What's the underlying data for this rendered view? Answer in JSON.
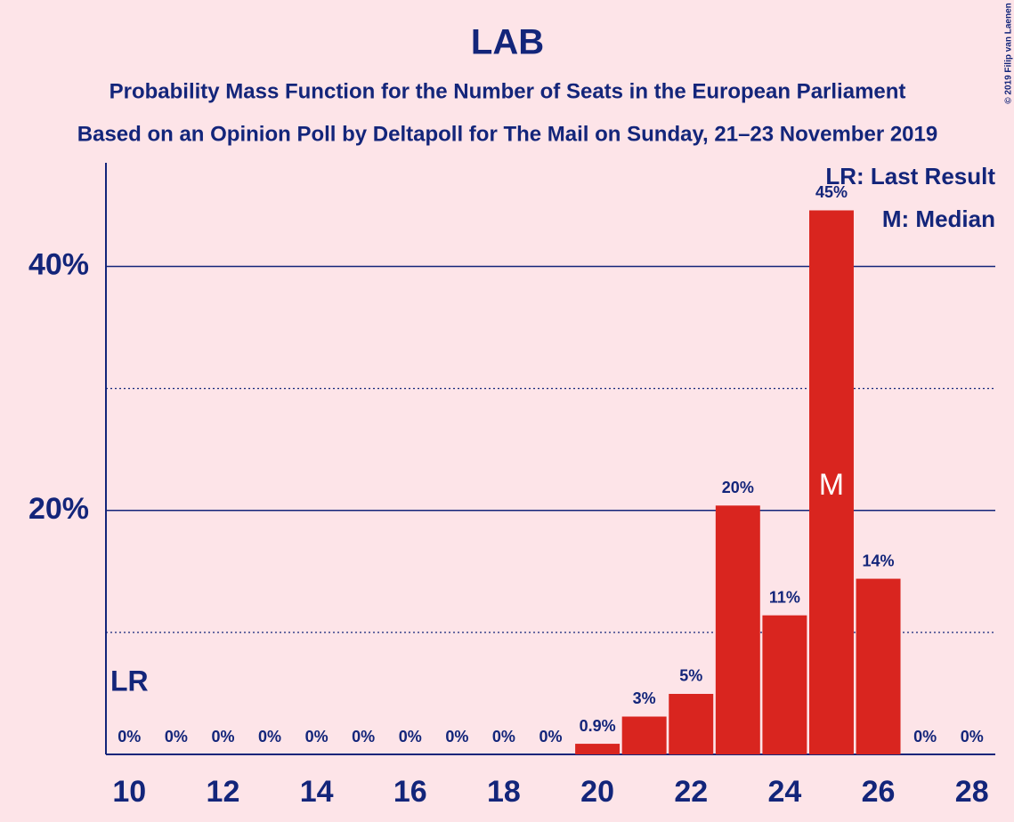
{
  "chart_data": {
    "type": "bar",
    "title": "LAB",
    "subtitle": "Probability Mass Function for the Number of Seats in the European Parliament",
    "subtitle2": "Based on an Opinion Poll by Deltapoll for The Mail on Sunday, 21–23 November 2019",
    "copyright": "© 2019 Filip van Laenen",
    "x": [
      10,
      11,
      12,
      13,
      14,
      15,
      16,
      17,
      18,
      19,
      20,
      21,
      22,
      23,
      24,
      25,
      26,
      27,
      28
    ],
    "values": [
      0,
      0,
      0,
      0,
      0,
      0,
      0,
      0,
      0,
      0,
      0.87,
      3.1,
      4.96,
      20.4,
      11.4,
      44.6,
      14.4,
      0,
      0
    ],
    "value_labels": [
      "0%",
      "0%",
      "0%",
      "0%",
      "0%",
      "0%",
      "0%",
      "0%",
      "0%",
      "0%",
      "0.9%",
      "3%",
      "5%",
      "20%",
      "11%",
      "45%",
      "14%",
      "0%",
      "0%"
    ],
    "color": "#d9251f",
    "xlim": [
      9.5,
      28.5
    ],
    "xticks": [
      10,
      12,
      14,
      16,
      18,
      20,
      22,
      24,
      26,
      28
    ],
    "ylim": [
      0,
      48.5
    ],
    "yticks": [
      {
        "value": 20,
        "label": "20%"
      },
      {
        "value": 40,
        "label": "40%"
      }
    ],
    "yminor": [
      10,
      30
    ],
    "grid": true,
    "last_result": {
      "x": 10,
      "label": "LR"
    },
    "median": {
      "x": 25,
      "label": "M"
    },
    "legend": [
      "LR: Last Result",
      "M: Median"
    ]
  }
}
